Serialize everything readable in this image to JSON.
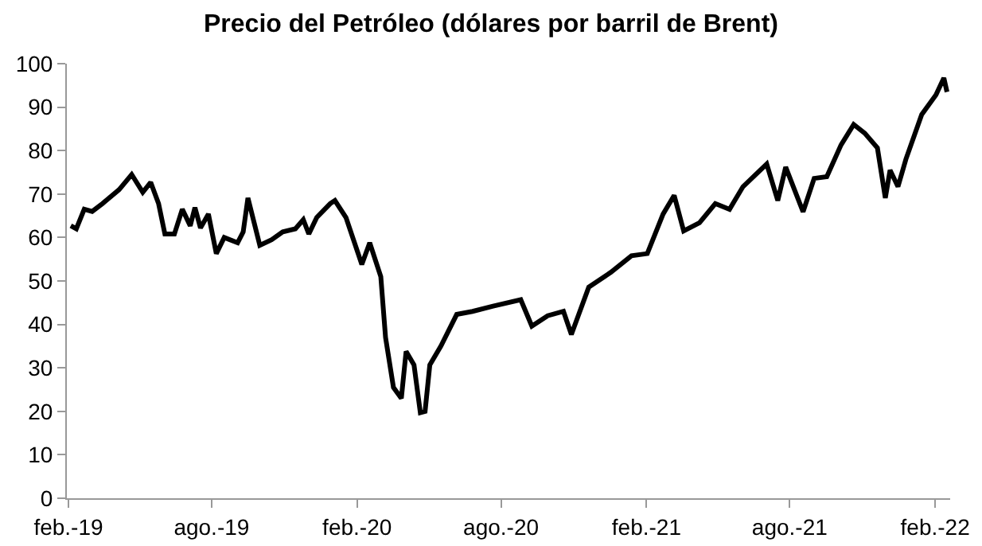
{
  "chart_data": {
    "type": "line",
    "title": "Precio del Petróleo (dólares por barril de Brent)",
    "x": [
      "2019-02-04",
      "2019-02-11",
      "2019-02-21",
      "2019-03-03",
      "2019-03-16",
      "2019-04-06",
      "2019-04-22",
      "2019-05-06",
      "2019-05-16",
      "2019-05-26",
      "2019-06-03",
      "2019-06-15",
      "2019-06-25",
      "2019-07-05",
      "2019-07-11",
      "2019-07-18",
      "2019-07-28",
      "2019-08-07",
      "2019-08-17",
      "2019-09-03",
      "2019-09-10",
      "2019-09-16",
      "2019-09-23",
      "2019-10-01",
      "2019-10-16",
      "2019-10-30",
      "2019-11-15",
      "2019-11-25",
      "2019-12-02",
      "2019-12-12",
      "2019-12-29",
      "2020-01-04",
      "2020-01-18",
      "2020-02-07",
      "2020-02-17",
      "2020-03-02",
      "2020-03-08",
      "2020-03-18",
      "2020-03-28",
      "2020-04-03",
      "2020-04-13",
      "2020-04-21",
      "2020-04-27",
      "2020-05-03",
      "2020-05-17",
      "2020-06-06",
      "2020-06-26",
      "2020-07-22",
      "2020-08-26",
      "2020-09-09",
      "2020-09-29",
      "2020-10-19",
      "2020-10-29",
      "2020-11-20",
      "2020-12-18",
      "2021-01-13",
      "2021-02-02",
      "2021-02-22",
      "2021-03-08",
      "2021-03-20",
      "2021-04-09",
      "2021-04-29",
      "2021-05-17",
      "2021-06-03",
      "2021-07-03",
      "2021-07-17",
      "2021-07-27",
      "2021-08-18",
      "2021-09-01",
      "2021-09-17",
      "2021-10-05",
      "2021-10-21",
      "2021-11-04",
      "2021-11-20",
      "2021-11-30",
      "2021-12-06",
      "2021-12-16",
      "2021-12-26",
      "2022-01-15",
      "2022-02-02",
      "2022-02-12",
      "2022-02-16"
    ],
    "series": [
      {
        "color": "#000000",
        "values": [
          62.7,
          62,
          66.5,
          66,
          67.8,
          71,
          74.5,
          70.4,
          72.7,
          67.8,
          60.8,
          60.8,
          66.5,
          62.7,
          66.9,
          62.2,
          65.4,
          56.3,
          60,
          58.8,
          61.3,
          69.1,
          64,
          58.2,
          59.5,
          61.3,
          62,
          64.1,
          60.8,
          64.6,
          67.8,
          68.5,
          64.6,
          53.8,
          58.8,
          51,
          37,
          25.5,
          23,
          33.8,
          30.7,
          19.7,
          20,
          30.7,
          35,
          42.3,
          43,
          44.2,
          45.7,
          39.6,
          42,
          43,
          37.7,
          48.6,
          52,
          55.8,
          56.3,
          65.4,
          69.7,
          61.5,
          63.4,
          67.8,
          66.5,
          71.7,
          76.9,
          68.5,
          76.2,
          65.9,
          73.6,
          74,
          81.3,
          86,
          84,
          80.6,
          69.1,
          75.5,
          71.7,
          78,
          88.3,
          92.8,
          96.7,
          93.5
        ]
      }
    ],
    "xlim": [
      "2019-01-30",
      "2022-02-20"
    ],
    "xticks": [
      {
        "value": "2019-02-01",
        "label": "feb.-19"
      },
      {
        "value": "2019-08-01",
        "label": "ago.-19"
      },
      {
        "value": "2020-02-01",
        "label": "feb.-20"
      },
      {
        "value": "2020-08-01",
        "label": "ago.-20"
      },
      {
        "value": "2021-02-01",
        "label": "feb.-21"
      },
      {
        "value": "2021-08-01",
        "label": "ago.-21"
      },
      {
        "value": "2022-02-01",
        "label": "feb.-22"
      }
    ],
    "ylim": [
      0,
      100
    ],
    "yticks": [
      0,
      10,
      20,
      30,
      40,
      50,
      60,
      70,
      80,
      90,
      100
    ],
    "grid": false,
    "marker": "none",
    "line_style": "solid"
  }
}
